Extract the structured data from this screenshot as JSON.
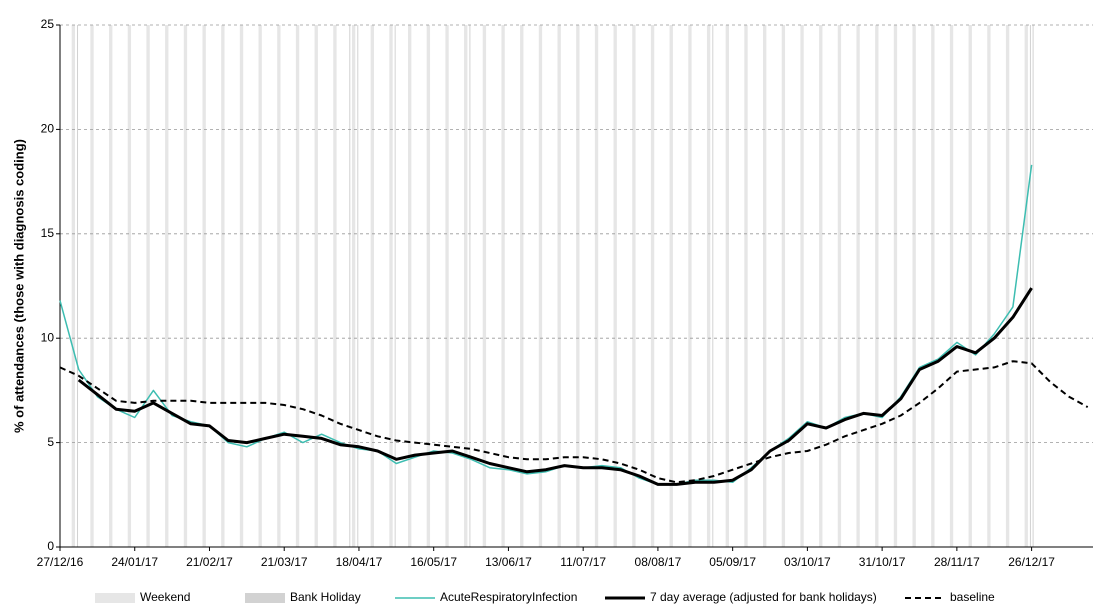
{
  "chart_data": {
    "type": "line",
    "y_label": "% of attendances (those with diagnosis coding)",
    "x": [
      "2016-12-27",
      "2017-01-03",
      "2017-01-10",
      "2017-01-17",
      "2017-01-24",
      "2017-01-31",
      "2017-02-07",
      "2017-02-14",
      "2017-02-21",
      "2017-02-28",
      "2017-03-07",
      "2017-03-14",
      "2017-03-21",
      "2017-03-28",
      "2017-04-04",
      "2017-04-11",
      "2017-04-18",
      "2017-04-25",
      "2017-05-02",
      "2017-05-09",
      "2017-05-16",
      "2017-05-23",
      "2017-05-30",
      "2017-06-06",
      "2017-06-13",
      "2017-06-20",
      "2017-06-27",
      "2017-07-04",
      "2017-07-11",
      "2017-07-18",
      "2017-07-25",
      "2017-08-01",
      "2017-08-08",
      "2017-08-15",
      "2017-08-22",
      "2017-08-29",
      "2017-09-05",
      "2017-09-12",
      "2017-09-19",
      "2017-09-26",
      "2017-10-03",
      "2017-10-10",
      "2017-10-17",
      "2017-10-24",
      "2017-10-31",
      "2017-11-07",
      "2017-11-14",
      "2017-11-21",
      "2017-11-28",
      "2017-12-05",
      "2017-12-12",
      "2017-12-19",
      "2017-12-26",
      "2018-01-02",
      "2018-01-09",
      "2018-01-16"
    ],
    "series": [
      {
        "name": "AcuteRespiratoryInfection",
        "color": "#3dbdb1",
        "width": 1.5,
        "dashed": false,
        "values": [
          11.8,
          8.5,
          7.2,
          6.6,
          6.2,
          7.5,
          6.3,
          6.0,
          5.8,
          5.0,
          4.8,
          5.2,
          5.5,
          5.0,
          5.4,
          5.0,
          4.7,
          4.6,
          4.0,
          4.3,
          4.6,
          4.5,
          4.2,
          3.8,
          3.7,
          3.5,
          3.6,
          3.9,
          3.8,
          3.9,
          3.8,
          3.3,
          3.0,
          3.0,
          3.2,
          3.2,
          3.1,
          3.8,
          4.6,
          5.2,
          6.0,
          5.7,
          6.2,
          6.4,
          6.2,
          7.2,
          8.6,
          9.0,
          9.8,
          9.2,
          10.2,
          11.5,
          18.3,
          null,
          null,
          null
        ]
      },
      {
        "name": "7 day average (adjusted for bank holidays)",
        "color": "#000000",
        "width": 3,
        "dashed": false,
        "values": [
          null,
          8.0,
          7.3,
          6.6,
          6.5,
          6.9,
          6.4,
          5.9,
          5.8,
          5.1,
          5.0,
          5.2,
          5.4,
          5.3,
          5.2,
          4.9,
          4.8,
          4.6,
          4.2,
          4.4,
          4.5,
          4.6,
          4.3,
          4.0,
          3.8,
          3.6,
          3.7,
          3.9,
          3.8,
          3.8,
          3.7,
          3.4,
          3.0,
          3.0,
          3.1,
          3.1,
          3.2,
          3.7,
          4.6,
          5.1,
          5.9,
          5.7,
          6.1,
          6.4,
          6.3,
          7.1,
          8.5,
          8.9,
          9.6,
          9.3,
          10.0,
          11.0,
          12.4,
          null,
          null,
          null
        ]
      },
      {
        "name": "baseline",
        "color": "#000000",
        "width": 2,
        "dashed": true,
        "values": [
          8.6,
          8.2,
          7.6,
          7.0,
          6.9,
          7.0,
          7.0,
          7.0,
          6.9,
          6.9,
          6.9,
          6.9,
          6.8,
          6.6,
          6.3,
          5.9,
          5.6,
          5.3,
          5.1,
          5.0,
          4.9,
          4.8,
          4.7,
          4.5,
          4.3,
          4.2,
          4.2,
          4.3,
          4.3,
          4.2,
          4.0,
          3.7,
          3.3,
          3.1,
          3.2,
          3.4,
          3.7,
          4.0,
          4.3,
          4.5,
          4.6,
          4.9,
          5.3,
          5.6,
          5.9,
          6.3,
          6.9,
          7.6,
          8.4,
          8.5,
          8.6,
          8.9,
          8.8,
          7.9,
          7.2,
          6.7
        ]
      }
    ],
    "shading": [
      {
        "name": "Weekend",
        "color": "#e6e6e6",
        "days": 2,
        "dates": [
          "2016-12-31",
          "2017-01-07",
          "2017-01-14",
          "2017-01-21",
          "2017-01-28",
          "2017-02-04",
          "2017-02-11",
          "2017-02-18",
          "2017-02-25",
          "2017-03-04",
          "2017-03-11",
          "2017-03-18",
          "2017-03-25",
          "2017-04-01",
          "2017-04-08",
          "2017-04-15",
          "2017-04-22",
          "2017-04-29",
          "2017-05-06",
          "2017-05-13",
          "2017-05-20",
          "2017-05-27",
          "2017-06-03",
          "2017-06-10",
          "2017-06-17",
          "2017-06-24",
          "2017-07-01",
          "2017-07-08",
          "2017-07-15",
          "2017-07-22",
          "2017-07-29",
          "2017-08-05",
          "2017-08-12",
          "2017-08-19",
          "2017-08-26",
          "2017-09-02",
          "2017-09-09",
          "2017-09-16",
          "2017-09-23",
          "2017-09-30",
          "2017-10-07",
          "2017-10-14",
          "2017-10-21",
          "2017-10-28",
          "2017-11-04",
          "2017-11-11",
          "2017-11-18",
          "2017-11-25",
          "2017-12-02",
          "2017-12-09",
          "2017-12-16",
          "2017-12-23"
        ]
      },
      {
        "name": "Bank Holiday",
        "color": "#d2d2d2",
        "days": 1,
        "dates": [
          "2017-01-02",
          "2017-04-14",
          "2017-04-17",
          "2017-05-01",
          "2017-05-29",
          "2017-08-28",
          "2017-12-25",
          "2017-12-26"
        ]
      }
    ],
    "xlim": [
      "2016-12-27",
      "2018-01-18"
    ],
    "xticks": [
      {
        "value": "2016-12-27",
        "label": "27/12/16"
      },
      {
        "value": "2017-01-24",
        "label": "24/01/17"
      },
      {
        "value": "2017-02-21",
        "label": "21/02/17"
      },
      {
        "value": "2017-03-21",
        "label": "21/03/17"
      },
      {
        "value": "2017-04-18",
        "label": "18/04/17"
      },
      {
        "value": "2017-05-16",
        "label": "16/05/17"
      },
      {
        "value": "2017-06-13",
        "label": "13/06/17"
      },
      {
        "value": "2017-07-11",
        "label": "11/07/17"
      },
      {
        "value": "2017-08-08",
        "label": "08/08/17"
      },
      {
        "value": "2017-09-05",
        "label": "05/09/17"
      },
      {
        "value": "2017-10-03",
        "label": "03/10/17"
      },
      {
        "value": "2017-10-31",
        "label": "31/10/17"
      },
      {
        "value": "2017-11-28",
        "label": "28/11/17"
      },
      {
        "value": "2017-12-26",
        "label": "26/12/17"
      }
    ],
    "ylim": [
      0,
      25
    ],
    "yticks": [
      0,
      5,
      10,
      15,
      20,
      25
    ],
    "grid": true,
    "legend": "bottom"
  }
}
